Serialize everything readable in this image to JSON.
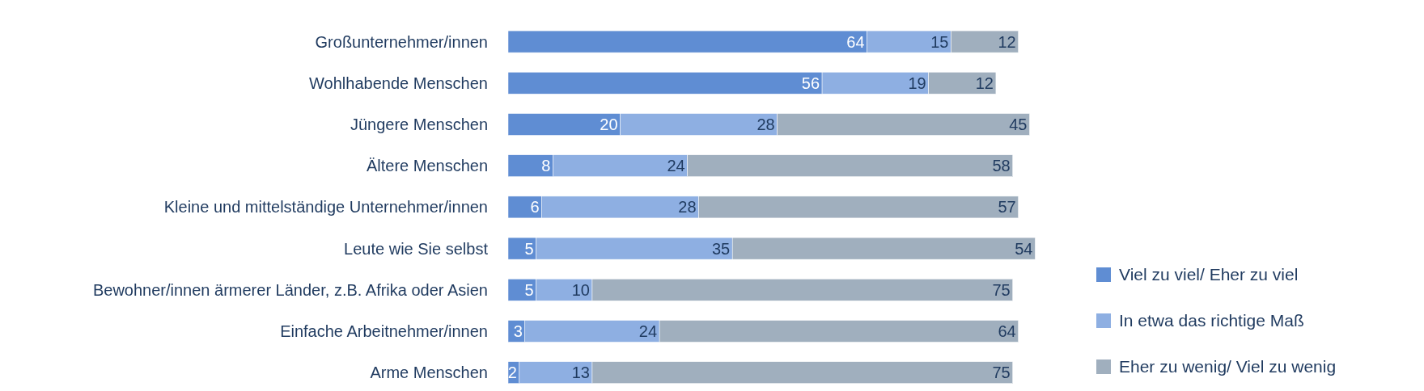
{
  "chart_data": {
    "type": "bar",
    "orientation": "horizontal",
    "stacked": true,
    "data_labels": true,
    "legend": "right",
    "categories": [
      "Großunternehmer/innen",
      "Wohlhabende Menschen",
      "Jüngere Menschen",
      "Ältere Menschen",
      "Kleine und mittelständige Unternehmer/innen",
      "Leute wie Sie selbst",
      "Bewohner/innen ärmerer Länder, z.B. Afrika oder Asien",
      "Einfache Arbeitnehmer/innen",
      "Arme Menschen"
    ],
    "series": [
      {
        "name": "Viel zu viel/ Eher zu viel",
        "color": "#5f8dd3",
        "values": [
          64,
          56,
          20,
          8,
          6,
          5,
          5,
          3,
          2
        ]
      },
      {
        "name": "In etwa das richtige Maß",
        "color": "#8eafe2",
        "values": [
          15,
          19,
          28,
          24,
          28,
          35,
          10,
          24,
          13
        ]
      },
      {
        "name": "Eher zu wenig/ Viel zu wenig",
        "color": "#a0afbe",
        "values": [
          12,
          12,
          45,
          58,
          57,
          54,
          75,
          64,
          75
        ]
      }
    ]
  }
}
